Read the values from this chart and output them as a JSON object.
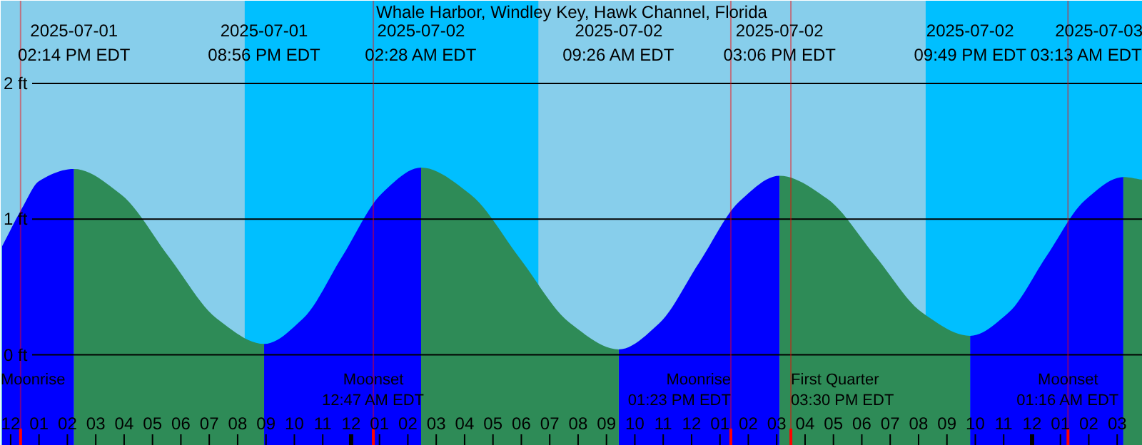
{
  "chart_data": {
    "type": "area",
    "title": "Whale Harbor, Windley Key, Hawk Channel, Florida",
    "x": [
      "2025-07-01T11:42",
      "2025-07-01T12:24",
      "2025-07-01T13:00",
      "2025-07-01T14:14",
      "2025-07-01T15:54",
      "2025-07-01T17:35",
      "2025-07-01T19:15",
      "2025-07-01T20:56",
      "2025-07-01T22:19",
      "2025-07-01T23:42",
      "2025-07-02T01:05",
      "2025-07-02T02:28",
      "2025-07-02T04:13",
      "2025-07-02T05:57",
      "2025-07-02T07:41",
      "2025-07-02T09:26",
      "2025-07-02T10:51",
      "2025-07-02T12:16",
      "2025-07-02T13:41",
      "2025-07-02T15:06",
      "2025-07-02T16:47",
      "2025-07-02T18:28",
      "2025-07-02T20:08",
      "2025-07-02T21:49",
      "2025-07-02T23:10",
      "2025-07-03T00:31",
      "2025-07-03T01:52",
      "2025-07-03T03:13",
      "2025-07-03T03:54"
    ],
    "series": [
      {
        "color": "#0000ff",
        "values": [
          0.8,
          1.08,
          1.28,
          1.37,
          null,
          null,
          null,
          0.08,
          0.27,
          0.73,
          1.19,
          1.38,
          null,
          null,
          null,
          0.04,
          0.23,
          0.68,
          1.13,
          1.32,
          null,
          null,
          null,
          0.14,
          0.31,
          0.73,
          1.14,
          1.31,
          null
        ]
      },
      {
        "color": "#2e8b57",
        "values": [
          null,
          null,
          null,
          1.37,
          1.18,
          0.72,
          0.27,
          0.08,
          null,
          null,
          null,
          1.38,
          1.18,
          0.71,
          0.24,
          0.04,
          null,
          null,
          null,
          1.32,
          1.15,
          0.73,
          0.31,
          0.14,
          null,
          null,
          null,
          1.31,
          1.29
        ]
      }
    ],
    "xlim": [
      "2025-07-01T11:39",
      "2025-07-03T03:54"
    ],
    "ylim": [
      -0.67,
      2.61
    ],
    "yticks": [
      {
        "value": 0,
        "label": "0 ft"
      },
      {
        "value": 1,
        "label": "1 ft"
      },
      {
        "value": 2,
        "label": "2 ft"
      }
    ],
    "xticks": [
      {
        "value": "2025-07-01T12:00",
        "label": "12"
      },
      {
        "value": "2025-07-01T13:00",
        "label": "01"
      },
      {
        "value": "2025-07-01T14:00",
        "label": "02"
      },
      {
        "value": "2025-07-01T15:00",
        "label": "03"
      },
      {
        "value": "2025-07-01T16:00",
        "label": "04"
      },
      {
        "value": "2025-07-01T17:00",
        "label": "05"
      },
      {
        "value": "2025-07-01T18:00",
        "label": "06"
      },
      {
        "value": "2025-07-01T19:00",
        "label": "07"
      },
      {
        "value": "2025-07-01T20:00",
        "label": "08"
      },
      {
        "value": "2025-07-01T21:00",
        "label": "09"
      },
      {
        "value": "2025-07-01T22:00",
        "label": "10"
      },
      {
        "value": "2025-07-01T23:00",
        "label": "11"
      },
      {
        "value": "2025-07-02T00:00",
        "label": "12"
      },
      {
        "value": "2025-07-02T01:00",
        "label": "01"
      },
      {
        "value": "2025-07-02T02:00",
        "label": "02"
      },
      {
        "value": "2025-07-02T03:00",
        "label": "03"
      },
      {
        "value": "2025-07-02T04:00",
        "label": "04"
      },
      {
        "value": "2025-07-02T05:00",
        "label": "05"
      },
      {
        "value": "2025-07-02T06:00",
        "label": "06"
      },
      {
        "value": "2025-07-02T07:00",
        "label": "07"
      },
      {
        "value": "2025-07-02T08:00",
        "label": "08"
      },
      {
        "value": "2025-07-02T09:00",
        "label": "09"
      },
      {
        "value": "2025-07-02T10:00",
        "label": "10"
      },
      {
        "value": "2025-07-02T11:00",
        "label": "11"
      },
      {
        "value": "2025-07-02T12:00",
        "label": "12"
      },
      {
        "value": "2025-07-02T13:00",
        "label": "01"
      },
      {
        "value": "2025-07-02T14:00",
        "label": "02"
      },
      {
        "value": "2025-07-02T15:00",
        "label": "03"
      },
      {
        "value": "2025-07-02T16:00",
        "label": "04"
      },
      {
        "value": "2025-07-02T17:00",
        "label": "05"
      },
      {
        "value": "2025-07-02T18:00",
        "label": "06"
      },
      {
        "value": "2025-07-02T19:00",
        "label": "07"
      },
      {
        "value": "2025-07-02T20:00",
        "label": "08"
      },
      {
        "value": "2025-07-02T21:00",
        "label": "09"
      },
      {
        "value": "2025-07-02T22:00",
        "label": "10"
      },
      {
        "value": "2025-07-02T23:00",
        "label": "11"
      },
      {
        "value": "2025-07-03T00:00",
        "label": "12"
      },
      {
        "value": "2025-07-03T01:00",
        "label": "01"
      },
      {
        "value": "2025-07-03T02:00",
        "label": "02"
      },
      {
        "value": "2025-07-03T03:00",
        "label": "03"
      }
    ],
    "grid": "y",
    "bands": [
      {
        "axis": "x",
        "from": "2025-07-01T20:15",
        "to": "2025-07-02T06:36",
        "color": "#00bfff"
      },
      {
        "axis": "x",
        "from": "2025-07-02T20:15",
        "to": "2025-07-03T03:54",
        "color": "#00bfff"
      }
    ],
    "ref_lines": [
      {
        "axis": "x",
        "value": "2025-07-01T12:21",
        "label": "Moonrise",
        "color": "#ff0000"
      },
      {
        "axis": "x",
        "value": "2025-07-02T00:47",
        "label": "Moonset\n12:47 AM EDT",
        "color": "#ff0000"
      },
      {
        "axis": "x",
        "value": "2025-07-02T13:23",
        "label": "Moonrise\n01:23 PM EDT",
        "color": "#ff0000"
      },
      {
        "axis": "x",
        "value": "2025-07-02T15:30",
        "label": "First Quarter\n03:30 PM EDT",
        "color": "#ff0000"
      },
      {
        "axis": "x",
        "value": "2025-07-03T01:16",
        "label": "Moonset\n01:16 AM EDT",
        "color": "#ff0000"
      }
    ],
    "annotations": [
      "2025-07-01\n02:14 PM EDT",
      "2025-07-01\n08:56 PM EDT",
      "2025-07-02\n02:28 AM EDT",
      "2025-07-02\n09:26 AM EDT",
      "2025-07-02\n03:06 PM EDT",
      "2025-07-02\n09:49 PM EDT",
      "2025-07-03\n03:13 AM EDT"
    ]
  }
}
